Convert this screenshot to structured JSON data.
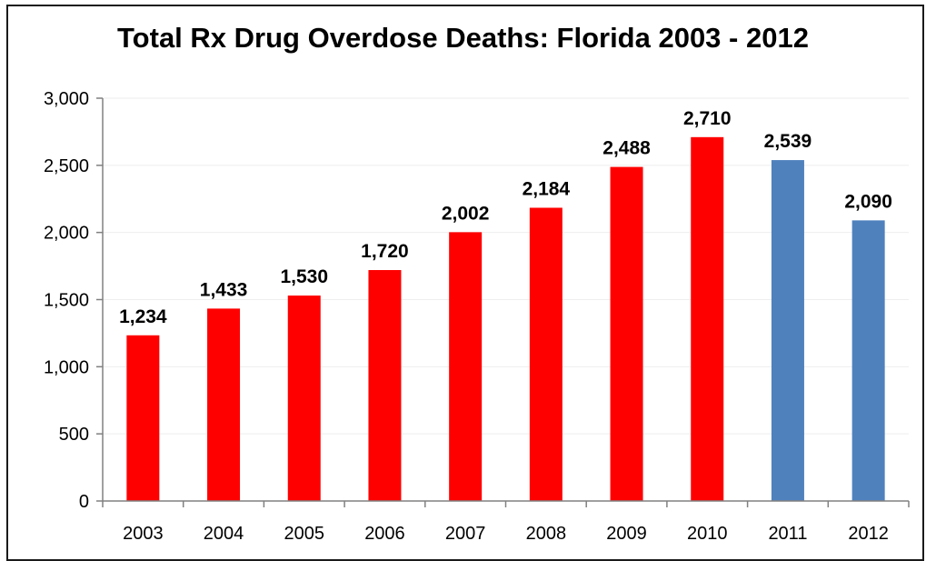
{
  "chart_data": {
    "type": "bar",
    "title": "Total Rx Drug Overdose Deaths: Florida 2003 - 2012",
    "categories": [
      "2003",
      "2004",
      "2005",
      "2006",
      "2007",
      "2008",
      "2009",
      "2010",
      "2011",
      "2012"
    ],
    "values": [
      1234,
      1433,
      1530,
      1720,
      2002,
      2184,
      2488,
      2710,
      2539,
      2090
    ],
    "data_labels": [
      "1,234",
      "1,433",
      "1,530",
      "1,720",
      "2,002",
      "2,184",
      "2,488",
      "2,710",
      "2,539",
      "2,090"
    ],
    "bar_colors": [
      "#ff0000",
      "#ff0000",
      "#ff0000",
      "#ff0000",
      "#ff0000",
      "#ff0000",
      "#ff0000",
      "#ff0000",
      "#4f81bd",
      "#4f81bd"
    ],
    "yticks": [
      0,
      500,
      1000,
      1500,
      2000,
      2500,
      3000
    ],
    "ytick_labels": [
      "0",
      "500",
      "1,000",
      "1,500",
      "2,000",
      "2,500",
      "3,000"
    ],
    "ylim": [
      0,
      3000
    ],
    "xlabel": "",
    "ylabel": "",
    "grid": true,
    "legend": "none"
  }
}
